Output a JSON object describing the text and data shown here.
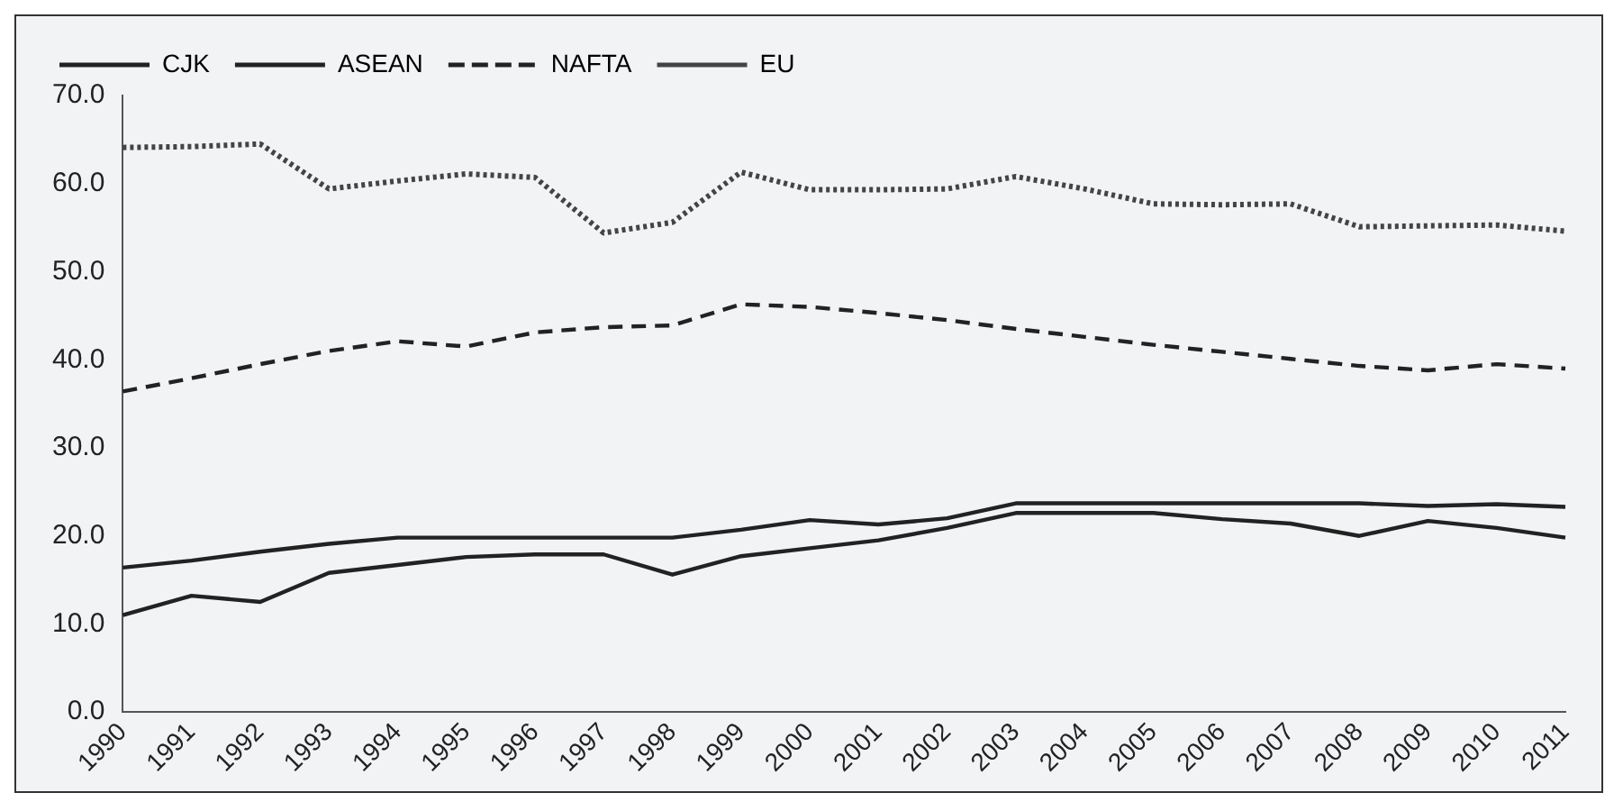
{
  "chart_data": {
    "type": "line",
    "categories": [
      "1990",
      "1991",
      "1992",
      "1993",
      "1994",
      "1995",
      "1996",
      "1997",
      "1998",
      "1999",
      "2000",
      "2001",
      "2002",
      "2003",
      "2004",
      "2005",
      "2006",
      "2007",
      "2008",
      "2009",
      "2010",
      "2011"
    ],
    "series": [
      {
        "name": "CJK",
        "color": "#222222",
        "line_style": "solid",
        "values": [
          11.0,
          13.2,
          12.5,
          15.8,
          16.7,
          17.6,
          17.9,
          17.9,
          15.6,
          17.7,
          18.6,
          19.5,
          20.9,
          22.6,
          22.6,
          22.6,
          21.9,
          21.4,
          20.0,
          21.7,
          20.9,
          19.8
        ]
      },
      {
        "name": "ASEAN",
        "color": "#222222",
        "line_style": "solid",
        "values": [
          16.4,
          17.2,
          18.2,
          19.1,
          19.8,
          19.8,
          19.8,
          19.8,
          19.8,
          20.7,
          21.8,
          21.3,
          22.0,
          23.7,
          23.7,
          23.7,
          23.7,
          23.7,
          23.7,
          23.4,
          23.6,
          23.3
        ]
      },
      {
        "name": "NAFTA",
        "color": "#222222",
        "line_style": "dashed",
        "values": [
          36.4,
          37.9,
          39.5,
          41.0,
          42.1,
          41.5,
          43.1,
          43.7,
          43.9,
          46.3,
          46.0,
          45.3,
          44.5,
          43.5,
          42.6,
          41.7,
          40.9,
          40.1,
          39.3,
          38.8,
          39.5,
          39.0
        ]
      },
      {
        "name": "EU",
        "color": "#444444",
        "line_style": "dotted",
        "values": [
          64.1,
          64.2,
          64.5,
          59.4,
          60.3,
          61.1,
          60.7,
          54.4,
          55.6,
          61.3,
          59.3,
          59.3,
          59.4,
          60.8,
          59.4,
          57.7,
          57.6,
          57.7,
          55.1,
          55.2,
          55.3,
          54.6
        ]
      }
    ],
    "ylim": [
      0,
      70
    ],
    "yticks": [
      {
        "value": 0,
        "label": "0.0"
      },
      {
        "value": 10,
        "label": "10.0"
      },
      {
        "value": 20,
        "label": "20.0"
      },
      {
        "value": 30,
        "label": "30.0"
      },
      {
        "value": 40,
        "label": "40.0"
      },
      {
        "value": 50,
        "label": "50.0"
      },
      {
        "value": 60,
        "label": "60.0"
      },
      {
        "value": 70,
        "label": "70.0"
      }
    ],
    "grid": false,
    "legend": "top",
    "marker": "none"
  }
}
